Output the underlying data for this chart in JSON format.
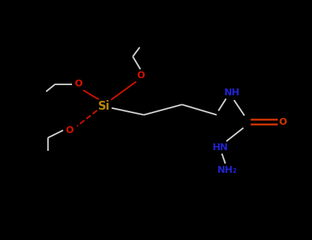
{
  "bg": "#000000",
  "si_col": "#b8860b",
  "o_col": "#cc1100",
  "n_col": "#2222cc",
  "w_col": "#cccccc",
  "co_col": "#cc3300",
  "fig_w": 4.55,
  "fig_h": 3.5,
  "dpi": 100,
  "xlim": [
    0,
    9
  ],
  "ylim": [
    0,
    7
  ]
}
